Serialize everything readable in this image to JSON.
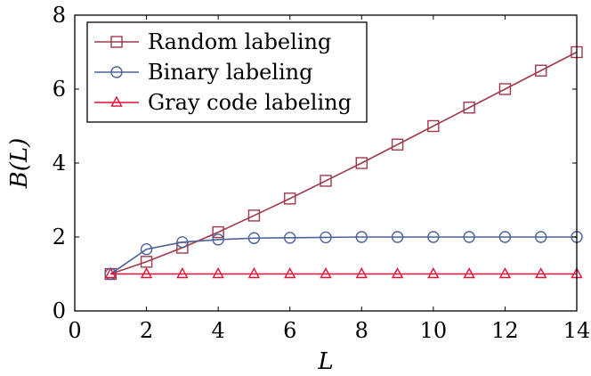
{
  "chart_data": {
    "type": "line",
    "xlabel": "L",
    "ylabel": "B(L)",
    "xlim": [
      0,
      14
    ],
    "ylim": [
      0,
      8
    ],
    "xticks": [
      "0",
      "2",
      "4",
      "6",
      "8",
      "10",
      "12",
      "14"
    ],
    "yticks": [
      "0",
      "2",
      "4",
      "6",
      "8"
    ],
    "grid": false,
    "legend_position": "top-left",
    "x": [
      1,
      2,
      3,
      4,
      5,
      6,
      7,
      8,
      9,
      10,
      11,
      12,
      13,
      14
    ],
    "series": [
      {
        "name": "Random labeling",
        "marker": "square",
        "color": "#9e3a4b",
        "values": [
          1.0,
          1.33,
          1.71,
          2.13,
          2.58,
          3.04,
          3.52,
          4.0,
          4.5,
          5.0,
          5.5,
          6.0,
          6.5,
          7.0
        ]
      },
      {
        "name": "Binary labeling",
        "marker": "circle",
        "color": "#4c6198",
        "values": [
          1.0,
          1.67,
          1.86,
          1.93,
          1.97,
          1.98,
          1.99,
          2.0,
          2.0,
          2.0,
          2.0,
          2.0,
          2.0,
          2.0
        ]
      },
      {
        "name": "Gray code labeling",
        "marker": "triangle",
        "color": "#e0133a",
        "values": [
          1,
          1,
          1,
          1,
          1,
          1,
          1,
          1,
          1,
          1,
          1,
          1,
          1,
          1
        ]
      }
    ]
  }
}
